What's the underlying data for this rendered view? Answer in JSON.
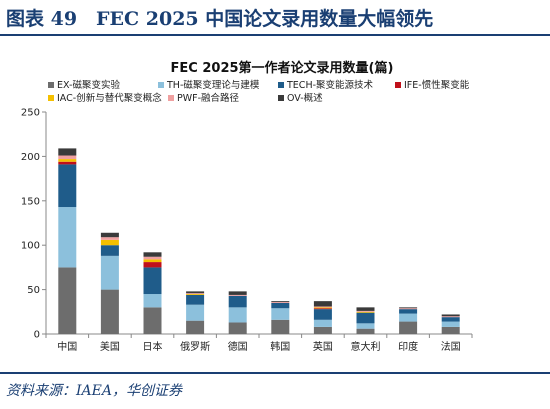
{
  "figure_title": "图表 49　FEC 2025 中国论文录用数量大幅领先",
  "source": "资料来源：IAEA，华创证券",
  "chart_data": {
    "type": "bar",
    "stacked": true,
    "title": "FEC 2025第一作者论文录用数量(篇)",
    "xlabel": "",
    "ylabel": "",
    "ylim": [
      0,
      250
    ],
    "yticks": [
      0,
      50,
      100,
      150,
      200,
      250
    ],
    "grid": false,
    "legend_position": "top",
    "categories": [
      "中国",
      "美国",
      "日本",
      "俄罗斯",
      "德国",
      "韩国",
      "英国",
      "意大利",
      "印度",
      "法国"
    ],
    "series": [
      {
        "name": "EX-磁聚变实验",
        "color": "#6d6d6d",
        "values": [
          75,
          50,
          30,
          15,
          13,
          16,
          8,
          6,
          14,
          8
        ]
      },
      {
        "name": "TH-磁聚变理论与建模",
        "color": "#8cc0dc",
        "values": [
          68,
          38,
          15,
          18,
          17,
          13,
          8,
          6,
          9,
          6
        ]
      },
      {
        "name": "TECH-聚变能源技术",
        "color": "#1f5c8a",
        "values": [
          48,
          12,
          30,
          11,
          13,
          6,
          12,
          12,
          5,
          5
        ]
      },
      {
        "name": "IFE-惯性聚变能",
        "color": "#c0101a",
        "values": [
          3,
          0,
          6,
          0,
          0,
          0,
          1,
          0,
          0,
          0
        ]
      },
      {
        "name": "IAC-创新与替代聚变概念",
        "color": "#f5c000",
        "values": [
          3,
          6,
          3,
          1,
          0,
          0,
          1,
          1,
          0,
          0
        ]
      },
      {
        "name": "PWF-融合路径",
        "color": "#f0a0a0",
        "values": [
          4,
          3,
          3,
          1,
          1,
          1,
          1,
          1,
          1,
          1
        ]
      },
      {
        "name": "OV-概述",
        "color": "#3a3a3a",
        "values": [
          8,
          5,
          5,
          2,
          4,
          1,
          6,
          4,
          1,
          2
        ]
      }
    ]
  }
}
